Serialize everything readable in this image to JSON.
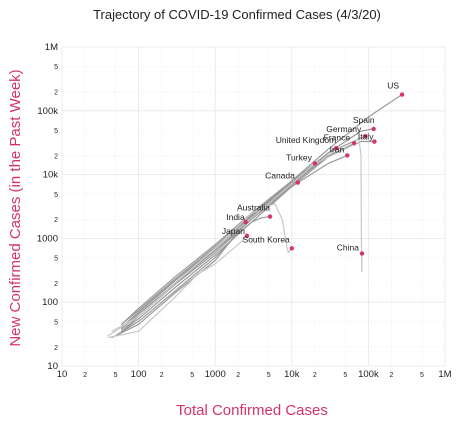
{
  "chart_data": {
    "type": "line",
    "title": "Trajectory of COVID-19 Confirmed Cases (4/3/20)",
    "xlabel": "Total Confirmed Cases",
    "ylabel": "New Confirmed Cases (in the Past Week)",
    "x_scale": "log",
    "y_scale": "log",
    "xlim": [
      10,
      1000000
    ],
    "ylim": [
      10,
      1000000
    ],
    "major_ticks": [
      {
        "value": 10,
        "label": "10"
      },
      {
        "value": 100,
        "label": "100"
      },
      {
        "value": 1000,
        "label": "1000"
      },
      {
        "value": 10000,
        "label": "10k"
      },
      {
        "value": 100000,
        "label": "100k"
      },
      {
        "value": 1000000,
        "label": "1M"
      }
    ],
    "minor_ticks": [
      {
        "value": 20,
        "label": "2"
      },
      {
        "value": 50,
        "label": "5"
      },
      {
        "value": 200,
        "label": "2"
      },
      {
        "value": 500,
        "label": "5"
      },
      {
        "value": 2000,
        "label": "2"
      },
      {
        "value": 5000,
        "label": "5"
      },
      {
        "value": 20000,
        "label": "2"
      },
      {
        "value": 50000,
        "label": "5"
      },
      {
        "value": 200000,
        "label": "2"
      },
      {
        "value": 500000,
        "label": "5"
      }
    ],
    "grid": true,
    "colors": {
      "point": "#d6336c",
      "axis_label": "#d6336c",
      "trajectory": "#9a9a9a",
      "trajectory_light": "#c8c8c8"
    },
    "series": [
      {
        "name": "US",
        "x": [
          60,
          100,
          300,
          1000,
          3000,
          10000,
          30000,
          100000,
          275000
        ],
        "y": [
          45,
          80,
          250,
          800,
          2500,
          8000,
          25000,
          80000,
          180000
        ],
        "end": [
          275000,
          180000
        ],
        "label": "US"
      },
      {
        "name": "Spain",
        "x": [
          60,
          100,
          300,
          1000,
          3000,
          10000,
          30000,
          80000,
          117000
        ],
        "y": [
          40,
          70,
          220,
          700,
          2300,
          7500,
          22000,
          48000,
          52000
        ],
        "end": [
          117000,
          52000
        ],
        "label": "Spain"
      },
      {
        "name": "Italy",
        "x": [
          60,
          100,
          300,
          1000,
          3000,
          10000,
          30000,
          80000,
          120000
        ],
        "y": [
          40,
          70,
          220,
          700,
          2200,
          7000,
          20000,
          33000,
          33000
        ],
        "end": [
          120000,
          33000
        ],
        "label": "Italy"
      },
      {
        "name": "Germany",
        "x": [
          60,
          100,
          300,
          1000,
          3000,
          10000,
          30000,
          91000
        ],
        "y": [
          45,
          75,
          230,
          750,
          2400,
          7800,
          22000,
          40000
        ],
        "end": [
          91000,
          40000
        ],
        "label": "Germany"
      },
      {
        "name": "France",
        "x": [
          60,
          100,
          300,
          1000,
          3000,
          10000,
          30000,
          65000
        ],
        "y": [
          38,
          65,
          200,
          650,
          2000,
          6500,
          19000,
          31000
        ],
        "end": [
          65000,
          31000
        ],
        "label": "France"
      },
      {
        "name": "United Kingdom",
        "x": [
          60,
          100,
          300,
          1000,
          3000,
          10000,
          30000,
          38000
        ],
        "y": [
          38,
          65,
          200,
          650,
          2100,
          6800,
          22000,
          26000
        ],
        "end": [
          38000,
          26000
        ],
        "label": "United Kingdom"
      },
      {
        "name": "Iran",
        "x": [
          60,
          100,
          300,
          1000,
          3000,
          10000,
          30000,
          53000
        ],
        "y": [
          40,
          70,
          220,
          700,
          2200,
          6500,
          15000,
          20000
        ],
        "end": [
          53000,
          20000
        ],
        "label": "Iran"
      },
      {
        "name": "Turkey",
        "x": [
          60,
          100,
          300,
          1000,
          3000,
          10000,
          20000
        ],
        "y": [
          35,
          60,
          190,
          600,
          2000,
          8000,
          15000
        ],
        "end": [
          20000,
          15000
        ],
        "label": "Turkey"
      },
      {
        "name": "Canada",
        "x": [
          60,
          100,
          300,
          1000,
          3000,
          10000,
          12000
        ],
        "y": [
          35,
          55,
          170,
          550,
          1800,
          6500,
          7500
        ],
        "end": [
          12000,
          7500
        ],
        "label": "Canada"
      },
      {
        "name": "Australia",
        "x": [
          50,
          100,
          300,
          1000,
          2000,
          3000,
          4000,
          5200
        ],
        "y": [
          30,
          50,
          150,
          500,
          1200,
          1800,
          2100,
          2200
        ],
        "end": [
          5200,
          2200
        ],
        "label": "Australia"
      },
      {
        "name": "India",
        "x": [
          45,
          100,
          300,
          1000,
          2500
        ],
        "y": [
          28,
          45,
          140,
          450,
          1800
        ],
        "end": [
          2500,
          1800
        ],
        "label": "India"
      },
      {
        "name": "Japan",
        "x": [
          40,
          100,
          300,
          600,
          1000,
          1500,
          2000,
          2600
        ],
        "y": [
          28,
          35,
          120,
          280,
          400,
          600,
          800,
          1100
        ],
        "end": [
          2600,
          1100
        ],
        "label": "Japan"
      },
      {
        "name": "South Korea",
        "x": [
          40,
          100,
          300,
          1000,
          3000,
          6000,
          7500,
          8500,
          9000,
          9500,
          10000
        ],
        "y": [
          30,
          60,
          200,
          700,
          2500,
          3500,
          2000,
          800,
          600,
          650,
          700
        ],
        "end": [
          10000,
          700
        ],
        "label": "South Korea"
      },
      {
        "name": "China",
        "x": [
          45,
          100,
          300,
          1000,
          5000,
          20000,
          60000,
          75000,
          80000,
          81000,
          82000,
          82500
        ],
        "y": [
          35,
          60,
          200,
          700,
          3500,
          15000,
          28000,
          38000,
          20000,
          1000,
          300,
          580
        ],
        "end": [
          82500,
          580
        ],
        "label": "China"
      }
    ]
  }
}
